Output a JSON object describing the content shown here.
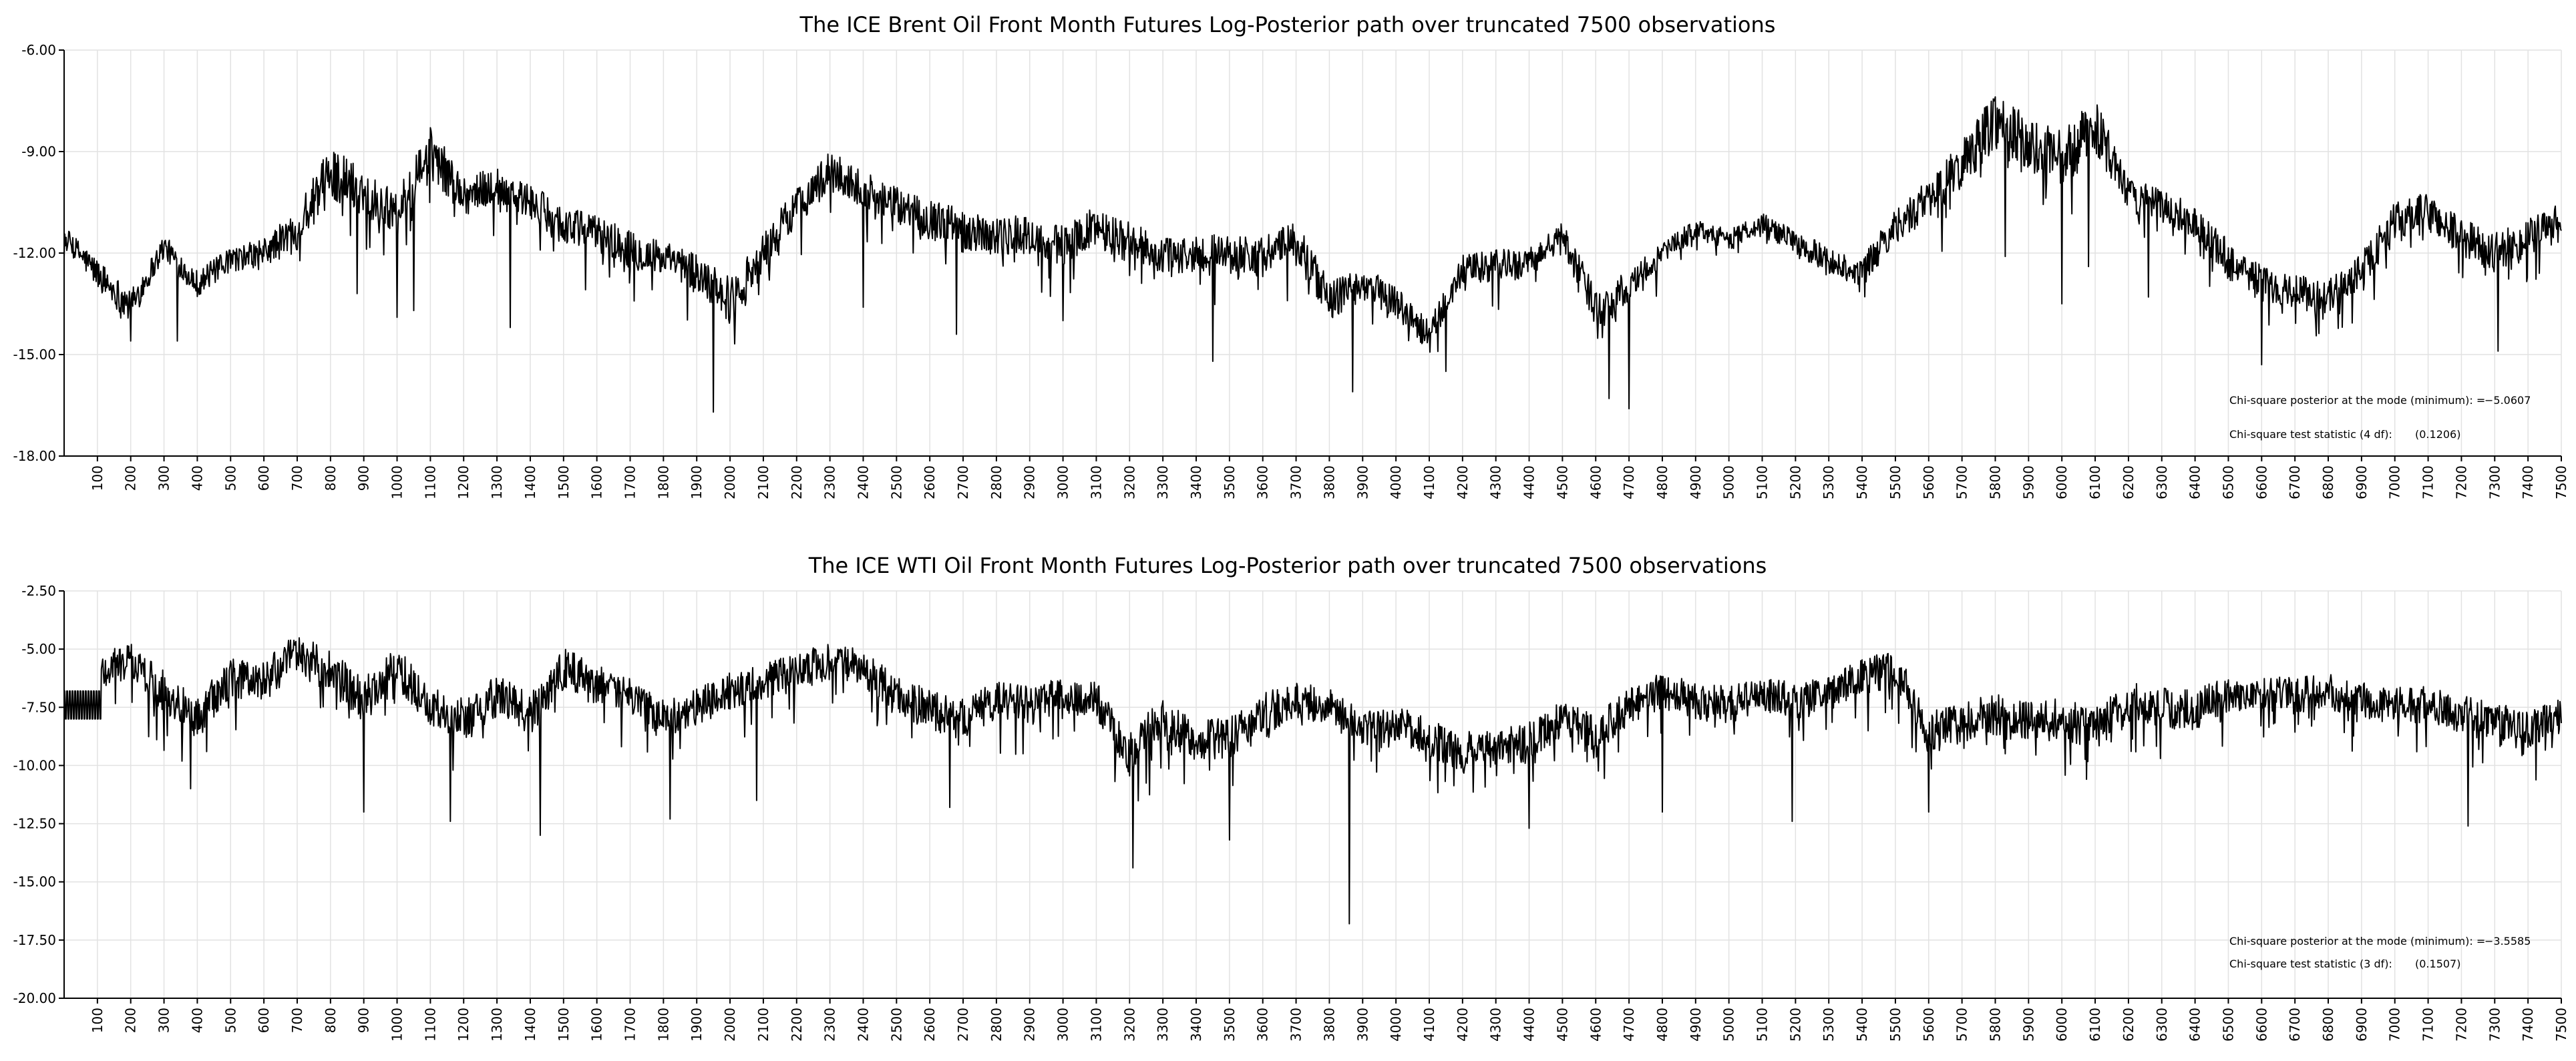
{
  "chart_data": [
    {
      "type": "line",
      "title": "The ICE Brent Oil Front Month Futures Log-Posterior path over truncated 7500 observations",
      "xlabel": "",
      "ylabel": "",
      "xlim": [
        0,
        7500
      ],
      "ylim": [
        -18.0,
        -6.0
      ],
      "y_ticks": [
        "-6.00",
        "-9.00",
        "-12.00",
        "-15.00",
        "-18.00"
      ],
      "y_tick_values": [
        -6,
        -9,
        -12,
        -15,
        -18
      ],
      "x_ticks": [
        "100",
        "200",
        "300",
        "400",
        "500",
        "600",
        "700",
        "800",
        "900",
        "1000",
        "1100",
        "1200",
        "1300",
        "1400",
        "1500",
        "1600",
        "1700",
        "1800",
        "1900",
        "2000",
        "2100",
        "2200",
        "2300",
        "2400",
        "2500",
        "2600",
        "2700",
        "2800",
        "2900",
        "3000",
        "3100",
        "3200",
        "3300",
        "3400",
        "3500",
        "3600",
        "3700",
        "3800",
        "3900",
        "4000",
        "4100",
        "4200",
        "4300",
        "4400",
        "4500",
        "4600",
        "4700",
        "4800",
        "4900",
        "5000",
        "5100",
        "5200",
        "5300",
        "5400",
        "5500",
        "5600",
        "5700",
        "5800",
        "5900",
        "6000",
        "6100",
        "6200",
        "6300",
        "6400",
        "6500",
        "6600",
        "6700",
        "6800",
        "6900",
        "7000",
        "7100",
        "7200",
        "7300",
        "7400",
        "7500"
      ],
      "grid": true,
      "annotations": [
        {
          "label": "Chi-square posterior at the mode (minimum): = ",
          "value": "−5.0607"
        },
        {
          "label": "Chi-square test statistic (4 df):",
          "value": "(0.1206)"
        }
      ],
      "series": [
        {
          "x": [
            0,
            100,
            200,
            300,
            400,
            500,
            600,
            700,
            800,
            900,
            1000,
            1100,
            1200,
            1300,
            1400,
            1500,
            1600,
            1700,
            1800,
            1900,
            2000,
            2100,
            2200,
            2300,
            2400,
            2500,
            2600,
            2700,
            2800,
            2900,
            3000,
            3100,
            3200,
            3300,
            3400,
            3500,
            3600,
            3700,
            3800,
            3900,
            4000,
            4100,
            4200,
            4300,
            4400,
            4500,
            4600,
            4700,
            4800,
            4900,
            5000,
            5100,
            5200,
            5300,
            5400,
            5500,
            5600,
            5700,
            5800,
            5900,
            6000,
            6100,
            6200,
            6300,
            6400,
            6500,
            6600,
            6700,
            6800,
            6900,
            7000,
            7100,
            7200,
            7300,
            7400,
            7500
          ],
          "y": [
            -11.5,
            -12.6,
            -13.6,
            -11.8,
            -12.9,
            -12.2,
            -12.0,
            -11.3,
            -9.6,
            -10.2,
            -10.8,
            -9.0,
            -10.3,
            -10.0,
            -10.5,
            -11.2,
            -11.4,
            -11.9,
            -12.2,
            -12.6,
            -13.4,
            -12.0,
            -10.6,
            -9.6,
            -10.1,
            -10.6,
            -11.0,
            -11.3,
            -11.5,
            -11.5,
            -11.8,
            -11.2,
            -11.7,
            -12.1,
            -12.1,
            -12.0,
            -12.1,
            -11.6,
            -13.4,
            -12.9,
            -13.4,
            -14.5,
            -12.5,
            -12.4,
            -12.3,
            -11.5,
            -13.6,
            -13.0,
            -12.0,
            -11.3,
            -11.6,
            -11.1,
            -11.7,
            -12.2,
            -12.6,
            -11.2,
            -10.4,
            -9.4,
            -8.0,
            -8.9,
            -9.3,
            -8.2,
            -10.3,
            -10.6,
            -11.1,
            -12.2,
            -12.9,
            -13.1,
            -13.3,
            -12.5,
            -11.1,
            -10.8,
            -11.5,
            -12.0,
            -11.6,
            -11.1
          ],
          "noise": [
            0.3,
            0.45,
            0.5,
            0.35,
            0.4,
            0.35,
            0.45,
            0.6,
            0.8,
            0.7,
            0.6,
            0.75,
            0.6,
            0.55,
            0.55,
            0.6,
            0.55,
            0.55,
            0.55,
            0.6,
            0.7,
            0.6,
            0.6,
            0.6,
            0.55,
            0.55,
            0.6,
            0.6,
            0.6,
            0.6,
            0.6,
            0.6,
            0.6,
            0.6,
            0.65,
            0.6,
            0.6,
            0.55,
            0.6,
            0.5,
            0.5,
            0.5,
            0.45,
            0.5,
            0.45,
            0.4,
            0.6,
            0.45,
            0.35,
            0.3,
            0.3,
            0.3,
            0.35,
            0.4,
            0.45,
            0.5,
            0.6,
            0.7,
            0.9,
            0.9,
            0.9,
            0.8,
            0.5,
            0.5,
            0.5,
            0.6,
            0.55,
            0.5,
            0.5,
            0.5,
            0.6,
            0.6,
            0.55,
            0.6,
            0.6,
            0.6
          ],
          "spikes": [
            [
              200,
              -14.6
            ],
            [
              340,
              -14.6
            ],
            [
              880,
              -13.2
            ],
            [
              1000,
              -13.9
            ],
            [
              1050,
              -13.7
            ],
            [
              1340,
              -14.2
            ],
            [
              1950,
              -16.7
            ],
            [
              2400,
              -13.6
            ],
            [
              2680,
              -14.4
            ],
            [
              3000,
              -14.0
            ],
            [
              3450,
              -15.2
            ],
            [
              3870,
              -16.1
            ],
            [
              4150,
              -15.5
            ],
            [
              4640,
              -16.3
            ],
            [
              4700,
              -16.6
            ],
            [
              5830,
              -12.1
            ],
            [
              6000,
              -13.5
            ],
            [
              6080,
              -12.4
            ],
            [
              6260,
              -13.3
            ],
            [
              6600,
              -15.3
            ],
            [
              7310,
              -14.9
            ]
          ]
        }
      ]
    },
    {
      "type": "line",
      "title": "The ICE WTI Oil Front Month Futures Log-Posterior path over truncated 7500 observations",
      "xlabel": "",
      "ylabel": "",
      "xlim": [
        0,
        7500
      ],
      "ylim": [
        -20.0,
        -2.5
      ],
      "y_ticks": [
        "-2.50",
        "-5.00",
        "-7.50",
        "-10.00",
        "-12.50",
        "-15.00",
        "-17.50",
        "-20.00"
      ],
      "y_tick_values": [
        -2.5,
        -5,
        -7.5,
        -10,
        -12.5,
        -15,
        -17.5,
        -20
      ],
      "x_ticks": [
        "100",
        "200",
        "300",
        "400",
        "500",
        "600",
        "700",
        "800",
        "900",
        "1000",
        "1100",
        "1200",
        "1300",
        "1400",
        "1500",
        "1600",
        "1700",
        "1800",
        "1900",
        "2000",
        "2100",
        "2200",
        "2300",
        "2400",
        "2500",
        "2600",
        "2700",
        "2800",
        "2900",
        "3000",
        "3100",
        "3200",
        "3300",
        "3400",
        "3500",
        "3600",
        "3700",
        "3800",
        "3900",
        "4000",
        "4100",
        "4200",
        "4300",
        "4400",
        "4500",
        "4600",
        "4700",
        "4800",
        "4900",
        "5000",
        "5100",
        "5200",
        "5300",
        "5400",
        "5500",
        "5600",
        "5700",
        "5800",
        "5900",
        "6000",
        "6100",
        "6200",
        "6300",
        "6400",
        "6500",
        "6600",
        "6700",
        "6800",
        "6900",
        "7000",
        "7100",
        "7200",
        "7300",
        "7400",
        "7500"
      ],
      "grid": true,
      "annotations": [
        {
          "label": "Chi-square posterior at the mode (minimum): = ",
          "value": "−3.5585"
        },
        {
          "label": "Chi-square test statistic (3 df):",
          "value": "(0.1507)"
        }
      ],
      "series": [
        {
          "x": [
            0,
            100,
            200,
            300,
            400,
            500,
            600,
            700,
            800,
            900,
            1000,
            1100,
            1200,
            1300,
            1400,
            1500,
            1600,
            1700,
            1800,
            1900,
            2000,
            2100,
            2200,
            2300,
            2400,
            2500,
            2600,
            2700,
            2800,
            2900,
            3000,
            3100,
            3200,
            3300,
            3400,
            3500,
            3600,
            3700,
            3800,
            3900,
            4000,
            4100,
            4200,
            4300,
            4400,
            4500,
            4600,
            4700,
            4800,
            4900,
            5000,
            5100,
            5200,
            5300,
            5400,
            5500,
            5600,
            5700,
            5800,
            5900,
            6000,
            6100,
            6200,
            6300,
            6400,
            6500,
            6600,
            6700,
            6800,
            6900,
            7000,
            7100,
            7200,
            7300,
            7400,
            7500
          ],
          "y": [
            -7.2,
            -6.0,
            -5.5,
            -6.8,
            -8.0,
            -6.2,
            -6.4,
            -5.2,
            -6.0,
            -7.2,
            -5.8,
            -7.5,
            -8.0,
            -7.0,
            -7.8,
            -5.8,
            -6.5,
            -7.0,
            -8.0,
            -7.5,
            -6.8,
            -6.4,
            -6.0,
            -5.5,
            -5.8,
            -7.0,
            -7.6,
            -8.0,
            -7.2,
            -7.4,
            -7.0,
            -7.2,
            -9.5,
            -8.0,
            -9.0,
            -8.8,
            -7.8,
            -7.2,
            -7.4,
            -8.5,
            -8.2,
            -8.8,
            -9.5,
            -9.2,
            -9.0,
            -8.0,
            -8.6,
            -7.5,
            -6.8,
            -7.2,
            -7.4,
            -7.0,
            -7.2,
            -7.0,
            -6.2,
            -5.8,
            -8.5,
            -8.2,
            -7.8,
            -8.2,
            -8.0,
            -8.4,
            -7.2,
            -7.4,
            -7.6,
            -7.0,
            -6.8,
            -7.0,
            -6.8,
            -7.2,
            -7.4,
            -7.4,
            -7.8,
            -8.0,
            -8.5,
            -7.8
          ],
          "noise": [
            0.5,
            0.9,
            0.8,
            0.9,
            0.9,
            0.9,
            0.9,
            0.9,
            0.9,
            1.0,
            0.9,
            0.9,
            0.9,
            0.9,
            0.9,
            0.9,
            0.8,
            0.8,
            0.8,
            0.8,
            0.8,
            0.8,
            0.8,
            0.8,
            0.8,
            0.8,
            0.9,
            0.9,
            0.8,
            0.8,
            0.8,
            0.8,
            1.0,
            0.9,
            0.9,
            0.9,
            0.9,
            0.8,
            0.8,
            0.8,
            0.8,
            0.8,
            0.9,
            0.9,
            0.9,
            0.8,
            0.8,
            0.8,
            0.8,
            0.8,
            0.8,
            0.8,
            0.8,
            0.8,
            0.8,
            0.8,
            0.9,
            0.9,
            0.9,
            0.9,
            0.9,
            0.9,
            0.9,
            0.9,
            0.9,
            0.8,
            0.8,
            0.8,
            0.8,
            0.8,
            0.8,
            0.8,
            0.8,
            0.8,
            0.8,
            0.8
          ],
          "spikes": [
            [
              380,
              -11.0
            ],
            [
              900,
              -12.0
            ],
            [
              1160,
              -12.4
            ],
            [
              1430,
              -13.0
            ],
            [
              1820,
              -12.3
            ],
            [
              2080,
              -11.5
            ],
            [
              2660,
              -11.8
            ],
            [
              3210,
              -14.4
            ],
            [
              3500,
              -13.2
            ],
            [
              3860,
              -16.8
            ],
            [
              4400,
              -12.7
            ],
            [
              4800,
              -12.0
            ],
            [
              5190,
              -12.4
            ],
            [
              5600,
              -12.0
            ],
            [
              7220,
              -12.6
            ]
          ],
          "flat_segment": {
            "x": [
              0,
              110
            ],
            "y": [
              -6.8,
              -8.0
            ]
          }
        }
      ]
    }
  ]
}
